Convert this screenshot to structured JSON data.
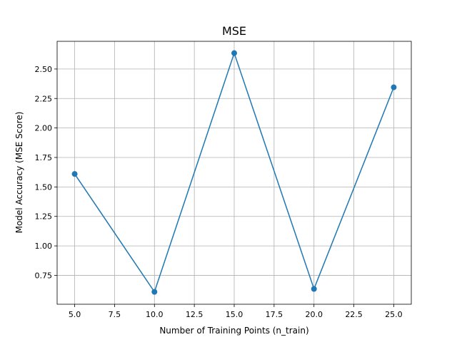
{
  "chart_data": {
    "type": "line",
    "title": "MSE",
    "xlabel": "Number of Training Points (n_train)",
    "ylabel": "Model Accuracy (MSE Score)",
    "xlim": [
      3.9,
      26.1
    ],
    "ylim": [
      0.505,
      2.735
    ],
    "xticks": [
      5.0,
      7.5,
      10.0,
      12.5,
      15.0,
      17.5,
      20.0,
      22.5,
      25.0
    ],
    "xtick_labels": [
      "5.0",
      "7.5",
      "10.0",
      "12.5",
      "15.0",
      "17.5",
      "20.0",
      "22.5",
      "25.0"
    ],
    "yticks": [
      0.75,
      1.0,
      1.25,
      1.5,
      1.75,
      2.0,
      2.25,
      2.5
    ],
    "ytick_labels": [
      "0.75",
      "1.00",
      "1.25",
      "1.50",
      "1.75",
      "2.00",
      "2.25",
      "2.50"
    ],
    "grid": true,
    "series": [
      {
        "color": "#1f77b4",
        "marker": "circle",
        "x": [
          5,
          10,
          15,
          20,
          25
        ],
        "y": [
          1.61,
          0.61,
          2.635,
          0.635,
          2.345
        ]
      }
    ]
  }
}
